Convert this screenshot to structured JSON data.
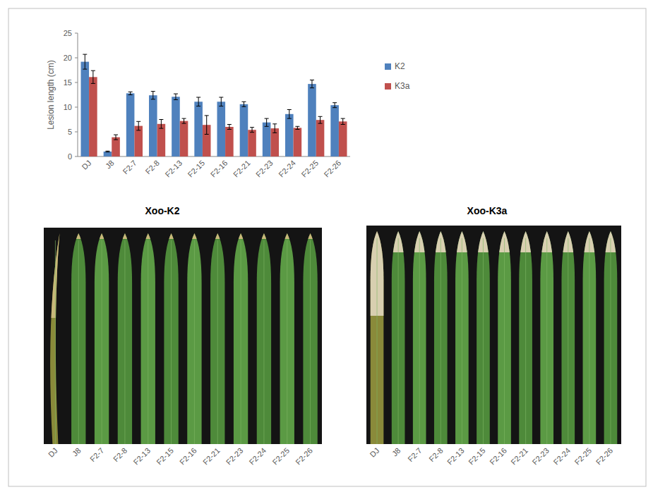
{
  "chart_data": {
    "type": "bar",
    "y_label": "Lesion length (cm)",
    "categories": [
      "DJ",
      "J8",
      "F2-7",
      "F2-8",
      "F2-13",
      "F2-15",
      "F2-16",
      "F2-21",
      "F2-23",
      "F2-24",
      "F2-25",
      "F2-26"
    ],
    "series": [
      {
        "name": "K2",
        "color": "#4f81bd",
        "values": [
          19.2,
          1.0,
          12.8,
          12.4,
          12.1,
          11.1,
          11.1,
          10.6,
          6.9,
          8.6,
          14.7,
          10.4
        ],
        "errors": [
          1.5,
          0.1,
          0.3,
          0.8,
          0.6,
          0.9,
          0.9,
          0.5,
          0.8,
          0.9,
          0.8,
          0.5
        ]
      },
      {
        "name": "K3a",
        "color": "#c0504d",
        "values": [
          16.1,
          3.9,
          6.2,
          6.6,
          7.2,
          6.4,
          6.0,
          5.4,
          5.7,
          5.8,
          7.4,
          7.1
        ],
        "errors": [
          1.3,
          0.5,
          0.9,
          0.9,
          0.5,
          1.9,
          0.5,
          0.5,
          0.9,
          0.3,
          0.7,
          0.6
        ]
      }
    ],
    "ylim": [
      0,
      25
    ],
    "yticks": [
      0,
      5,
      10,
      15,
      20,
      25
    ],
    "grid": false,
    "legend": "right"
  },
  "photos": [
    {
      "title": "Xoo-K2",
      "labels": [
        "DJ",
        "J8",
        "F2-7",
        "F2-8",
        "F2-13",
        "F2-15",
        "F2-16",
        "F2-21",
        "F2-23",
        "F2-24",
        "F2-25",
        "F2-26"
      ]
    },
    {
      "title": "Xoo-K3a",
      "labels": [
        "DJ",
        "J8",
        "F2-7",
        "F2-8",
        "F2-13",
        "F2-15",
        "F2-16",
        "F2-21",
        "F2-23",
        "F2-24",
        "F2-25",
        "F2-26"
      ]
    }
  ]
}
